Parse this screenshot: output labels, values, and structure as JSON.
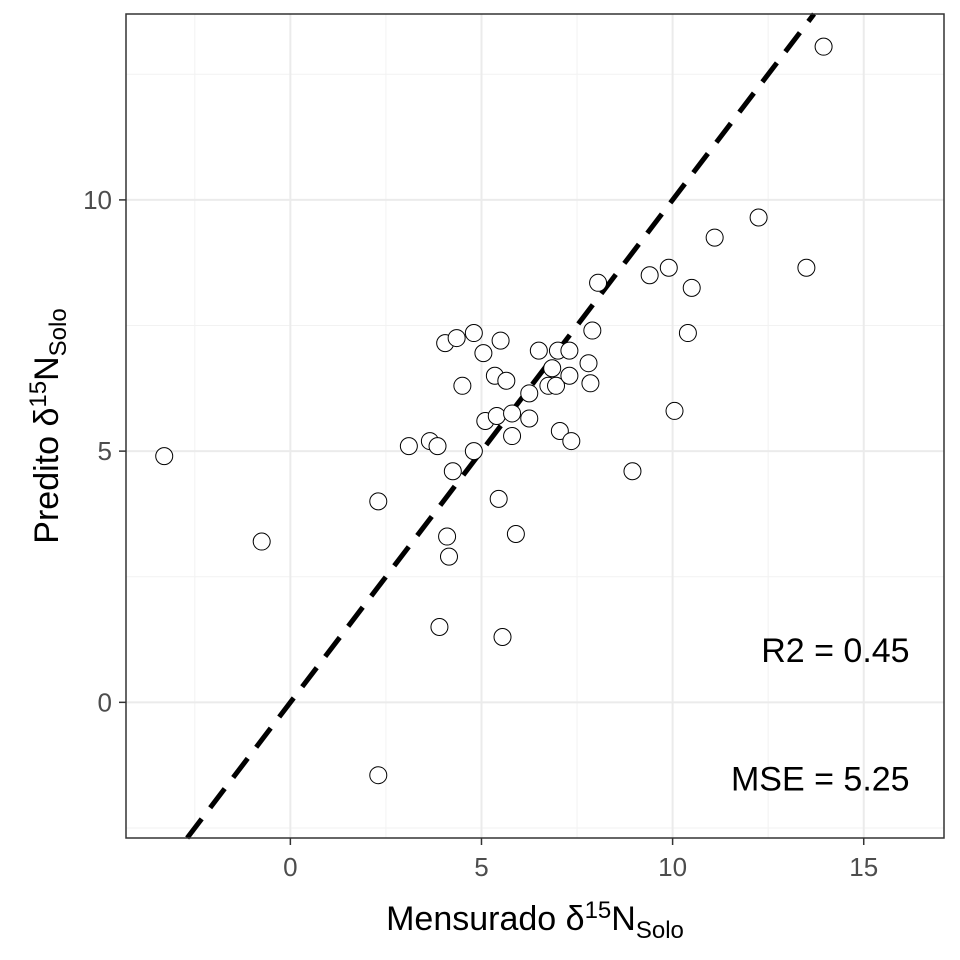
{
  "chart_data": {
    "type": "scatter",
    "xlabel": {
      "prefix": "Mensurado ",
      "delta": "δ",
      "sup": "15",
      "element": "N",
      "sub": "Solo"
    },
    "ylabel": {
      "prefix": "Predito ",
      "delta": "δ",
      "sup": "15",
      "element": "N",
      "sub": "Solo"
    },
    "xlim": [
      -4.3,
      17.1
    ],
    "ylim": [
      -2.7,
      13.7
    ],
    "x_ticks": [
      0,
      5,
      10,
      15
    ],
    "y_ticks": [
      0,
      5,
      10
    ],
    "x_tick_labels": [
      "0",
      "5",
      "10",
      "15"
    ],
    "y_tick_labels": [
      "0",
      "5",
      "10"
    ],
    "grid": true,
    "reference_line": {
      "style": "dashed",
      "slope": 1,
      "intercept": 0
    },
    "annotations": [
      {
        "text": "R2 = 0.45",
        "x": 16.2,
        "y": 0.8
      },
      {
        "text": "MSE = 5.25",
        "x": 16.2,
        "y": -1.75
      }
    ],
    "points": [
      {
        "x": -3.3,
        "y": 4.9
      },
      {
        "x": -0.75,
        "y": 3.2
      },
      {
        "x": 2.3,
        "y": 4.0
      },
      {
        "x": 2.3,
        "y": -1.45
      },
      {
        "x": 3.1,
        "y": 5.1
      },
      {
        "x": 3.65,
        "y": 5.2
      },
      {
        "x": 3.85,
        "y": 5.1
      },
      {
        "x": 3.9,
        "y": 1.5
      },
      {
        "x": 4.05,
        "y": 7.15
      },
      {
        "x": 4.1,
        "y": 3.3
      },
      {
        "x": 4.15,
        "y": 2.9
      },
      {
        "x": 4.25,
        "y": 4.6
      },
      {
        "x": 4.35,
        "y": 7.25
      },
      {
        "x": 4.5,
        "y": 6.3
      },
      {
        "x": 4.8,
        "y": 7.35
      },
      {
        "x": 4.8,
        "y": 5.0
      },
      {
        "x": 5.05,
        "y": 6.95
      },
      {
        "x": 5.1,
        "y": 5.6
      },
      {
        "x": 5.35,
        "y": 6.5
      },
      {
        "x": 5.4,
        "y": 5.7
      },
      {
        "x": 5.45,
        "y": 4.05
      },
      {
        "x": 5.5,
        "y": 7.2
      },
      {
        "x": 5.55,
        "y": 1.3
      },
      {
        "x": 5.65,
        "y": 6.4
      },
      {
        "x": 5.8,
        "y": 5.75
      },
      {
        "x": 5.8,
        "y": 5.3
      },
      {
        "x": 5.9,
        "y": 3.35
      },
      {
        "x": 6.25,
        "y": 6.15
      },
      {
        "x": 6.25,
        "y": 5.65
      },
      {
        "x": 6.5,
        "y": 7.0
      },
      {
        "x": 6.75,
        "y": 6.3
      },
      {
        "x": 6.85,
        "y": 6.65
      },
      {
        "x": 6.95,
        "y": 6.3
      },
      {
        "x": 7.0,
        "y": 7.0
      },
      {
        "x": 7.05,
        "y": 5.4
      },
      {
        "x": 7.3,
        "y": 7.0
      },
      {
        "x": 7.3,
        "y": 6.5
      },
      {
        "x": 7.35,
        "y": 5.2
      },
      {
        "x": 7.8,
        "y": 6.75
      },
      {
        "x": 7.85,
        "y": 6.35
      },
      {
        "x": 7.9,
        "y": 7.4
      },
      {
        "x": 8.05,
        "y": 8.35
      },
      {
        "x": 8.95,
        "y": 4.6
      },
      {
        "x": 9.4,
        "y": 8.5
      },
      {
        "x": 9.9,
        "y": 8.65
      },
      {
        "x": 10.05,
        "y": 5.8
      },
      {
        "x": 10.4,
        "y": 7.35
      },
      {
        "x": 10.5,
        "y": 8.25
      },
      {
        "x": 11.1,
        "y": 9.25
      },
      {
        "x": 12.25,
        "y": 9.65
      },
      {
        "x": 13.5,
        "y": 8.65
      },
      {
        "x": 13.95,
        "y": 13.05
      }
    ]
  }
}
